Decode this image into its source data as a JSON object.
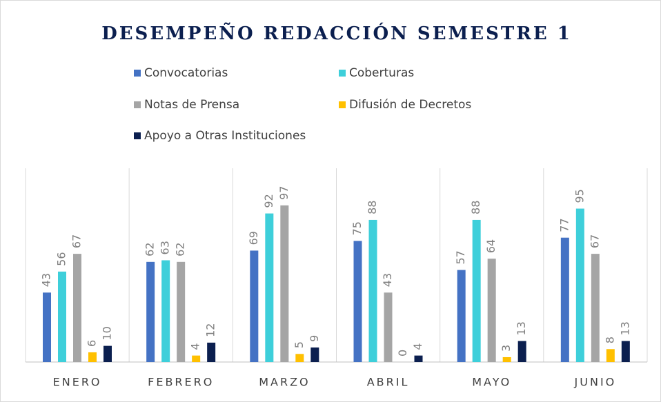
{
  "chart_data": {
    "type": "bar",
    "title": "DESEMPEÑO REDACCIÓN SEMESTRE 1",
    "categories": [
      "ENERO",
      "FEBRERO",
      "MARZO",
      "ABRIL",
      "MAYO",
      "JUNIO"
    ],
    "series": [
      {
        "name": "Convocatorias",
        "color": "#4472c4",
        "values": [
          43,
          62,
          69,
          75,
          57,
          77
        ]
      },
      {
        "name": "Coberturas",
        "color": "#3ecfda",
        "values": [
          56,
          63,
          92,
          88,
          88,
          95
        ]
      },
      {
        "name": "Notas de Prensa",
        "color": "#a5a5a5",
        "values": [
          67,
          62,
          97,
          43,
          64,
          67
        ]
      },
      {
        "name": "Difusión de Decretos",
        "color": "#ffc000",
        "values": [
          6,
          4,
          5,
          0,
          3,
          8
        ]
      },
      {
        "name": "Apoyo a Otras Instituciones",
        "color": "#0b1f4f",
        "values": [
          10,
          12,
          9,
          4,
          13,
          13
        ]
      }
    ],
    "ylim": [
      0,
      120
    ],
    "grid": false
  }
}
